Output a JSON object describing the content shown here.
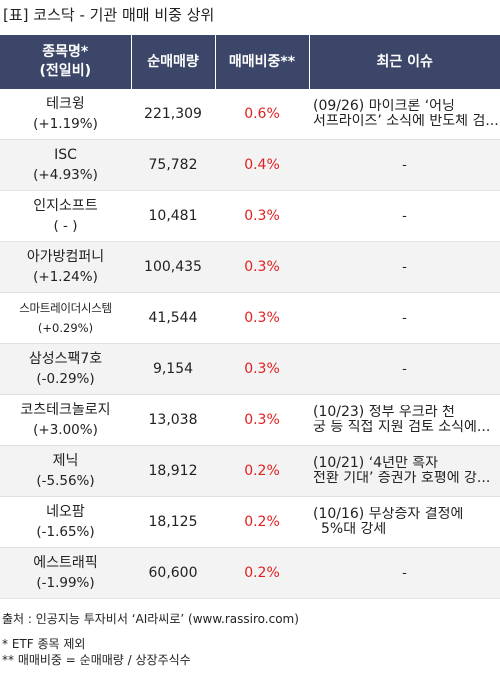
{
  "title": "[표] 코스닥 - 기관 매매 비중 상위",
  "headers": {
    "col1_line1": "종목명*",
    "col1_line2": "(전일비)",
    "col2": "순매매량",
    "col3": "매매비중**",
    "col4": "최근 이슈"
  },
  "rows": [
    {
      "name": "테크윙",
      "change": "(+1.19%)",
      "volume": "221,309",
      "ratio": "0.6%",
      "issue_line1": "(09/26) 마이크론 ‘어닝",
      "issue_line2": "서프라이즈’ 소식에 반도체 검..."
    },
    {
      "name": "ISC",
      "change": "(+4.93%)",
      "volume": "75,782",
      "ratio": "0.4%",
      "issue_line1": "-",
      "issue_line2": ""
    },
    {
      "name": "인지소프트",
      "change": "( - )",
      "volume": "10,481",
      "ratio": "0.3%",
      "issue_line1": "-",
      "issue_line2": ""
    },
    {
      "name": "아가방컴퍼니",
      "change": "(+1.24%)",
      "volume": "100,435",
      "ratio": "0.3%",
      "issue_line1": "-",
      "issue_line2": ""
    },
    {
      "name": "스마트레이더시스템",
      "change": "(+0.29%)",
      "volume": "41,544",
      "ratio": "0.3%",
      "issue_line1": "-",
      "issue_line2": ""
    },
    {
      "name": "삼성스팩7호",
      "change": "(-0.29%)",
      "volume": "9,154",
      "ratio": "0.3%",
      "issue_line1": "-",
      "issue_line2": ""
    },
    {
      "name": "코츠테크놀로지",
      "change": "(+3.00%)",
      "volume": "13,038",
      "ratio": "0.3%",
      "issue_line1": "(10/23) 정부 우크라 천",
      "issue_line2": "궁 등 직접 지원 검토 소식에..."
    },
    {
      "name": "제닉",
      "change": "(-5.56%)",
      "volume": "18,912",
      "ratio": "0.2%",
      "issue_line1": "(10/21) ‘4년만 흑자",
      "issue_line2": "전환 기대’ 증권가 호평에 강..."
    },
    {
      "name": "네오팜",
      "change": "(-1.65%)",
      "volume": "18,125",
      "ratio": "0.2%",
      "issue_line1": "(10/16) 무상증자 결정에",
      "issue_line2": "5%대 강세"
    },
    {
      "name": "에스트래픽",
      "change": "(-1.99%)",
      "volume": "60,600",
      "ratio": "0.2%",
      "issue_line1": "-",
      "issue_line2": ""
    }
  ],
  "footer": {
    "source": "출처 : 인공지능 투자비서 ‘AI라씨로’ (www.rassiro.com)",
    "note1": "* ETF 종목 제외",
    "note2": "** 매매비중 = 순매매량 / 상장주식수"
  }
}
